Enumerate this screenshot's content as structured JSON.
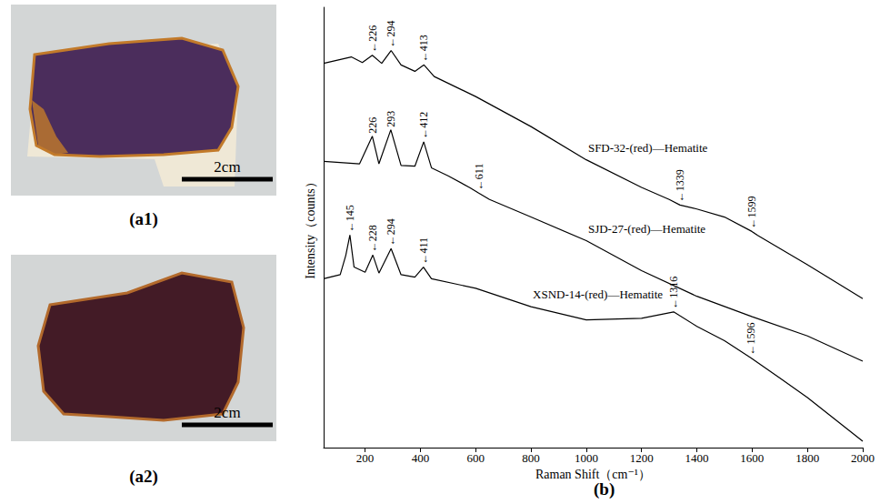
{
  "panels": [
    {
      "label": "(a1)",
      "scale_bar": "2cm"
    },
    {
      "label": "(a2)",
      "scale_bar": "2cm"
    }
  ],
  "chart_data": {
    "type": "line",
    "title": "(b)",
    "x_label": "Raman Shift（cm⁻¹）",
    "y_label": "Intensity（counts）",
    "xlim": [
      50,
      2000
    ],
    "xticks": [
      200,
      400,
      600,
      800,
      1000,
      1200,
      1400,
      1600,
      1800,
      2000
    ],
    "ylim": [
      0,
      110
    ],
    "tick_labels": "x",
    "grid": false,
    "series": [
      {
        "name": "SFD-32-(red)—Hematite",
        "color": "#000000",
        "marker": "none",
        "line_style": "solid",
        "x": [
          50,
          100,
          150,
          190,
          226,
          260,
          294,
          330,
          380,
          413,
          450,
          600,
          800,
          1000,
          1200,
          1300,
          1339,
          1400,
          1500,
          1599,
          1620,
          1800,
          2000
        ],
        "values": [
          96,
          96.8,
          97.6,
          96.2,
          98,
          96,
          99.2,
          95.6,
          94,
          95.6,
          92.7,
          87.7,
          80.2,
          71.9,
          65,
          62,
          60.6,
          59.6,
          57.6,
          54,
          53,
          45.7,
          37.2
        ],
        "annotations": [
          {
            "x": 226,
            "label": "←226"
          },
          {
            "x": 294,
            "label": "←294"
          },
          {
            "x": 413,
            "label": "←413"
          },
          {
            "x": 1339,
            "label": "←1339"
          },
          {
            "x": 1599,
            "label": "←1599"
          }
        ]
      },
      {
        "name": "SJD-27-(red)—Hematite",
        "color": "#000000",
        "marker": "none",
        "line_style": "solid",
        "x": [
          50,
          180,
          226,
          250,
          293,
          330,
          380,
          412,
          440,
          500,
          580,
          611,
          650,
          800,
          1000,
          1200,
          1400,
          1600,
          1800,
          2000
        ],
        "values": [
          71.5,
          70.9,
          77.8,
          70.9,
          79.4,
          70.5,
          70.3,
          76.4,
          69.9,
          67.9,
          64.9,
          63.6,
          62,
          57.6,
          51.7,
          44.2,
          37.8,
          32.7,
          27.9,
          21.6
        ],
        "annotations": [
          {
            "x": 226,
            "label": "226"
          },
          {
            "x": 293,
            "label": "293"
          },
          {
            "x": 412,
            "label": "←412"
          },
          {
            "x": 611,
            "label": "←611"
          }
        ]
      },
      {
        "name": "XSND-14-(red)—Hematite",
        "color": "#000000",
        "marker": "none",
        "line_style": "solid",
        "x": [
          50,
          110,
          130,
          145,
          160,
          200,
          228,
          250,
          294,
          330,
          380,
          411,
          440,
          600,
          800,
          1000,
          1200,
          1316,
          1400,
          1500,
          1596,
          1700,
          1800,
          2000
        ],
        "values": [
          42.2,
          43.2,
          48,
          53.1,
          45.1,
          43.8,
          48.1,
          43.6,
          49.7,
          43.2,
          42.6,
          45.1,
          42.2,
          39.8,
          35.2,
          31.9,
          32.3,
          33.9,
          30.3,
          26.7,
          22.4,
          17.4,
          12.5,
          1.6
        ],
        "annotations": [
          {
            "x": 145,
            "label": "←145"
          },
          {
            "x": 228,
            "label": "←228"
          },
          {
            "x": 294,
            "label": "←294"
          },
          {
            "x": 411,
            "label": "←411"
          },
          {
            "x": 1316,
            "label": "←1316"
          },
          {
            "x": 1596,
            "label": "←1596"
          }
        ]
      }
    ]
  }
}
